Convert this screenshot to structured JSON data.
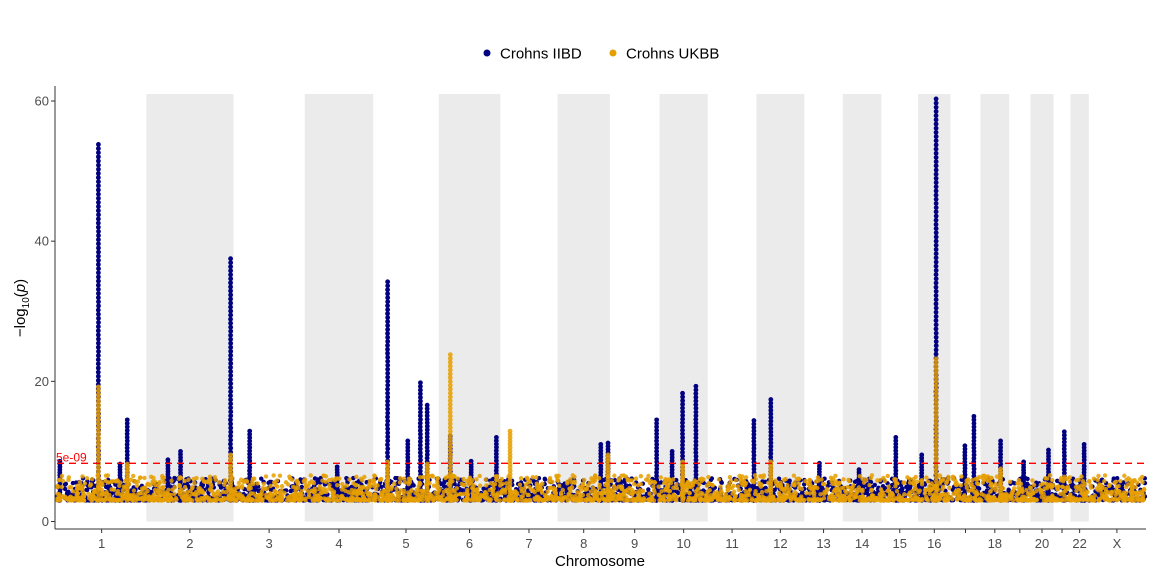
{
  "chart_data": {
    "type": "scatter",
    "subtype": "manhattan",
    "xlabel": "Chromosome",
    "ylabel_base": "−log",
    "ylabel_sub": "10",
    "ylabel_arg": "p",
    "yticks": [
      0,
      20,
      40,
      60
    ],
    "ylim": [
      0,
      61
    ],
    "grid": false,
    "legend_position": "top",
    "chromosome_band_color": "#ebebeb",
    "threshold": {
      "value": 8.3,
      "label": "5e-09",
      "color": "#ff0000"
    },
    "chromosomes": [
      {
        "label": "1",
        "start": 0,
        "end": 248,
        "band": false
      },
      {
        "label": "2",
        "start": 248,
        "end": 490,
        "band": true
      },
      {
        "label": "3",
        "start": 490,
        "end": 688,
        "band": false
      },
      {
        "label": "4",
        "start": 688,
        "end": 878,
        "band": true
      },
      {
        "label": "5",
        "start": 878,
        "end": 1060,
        "band": false
      },
      {
        "label": "6",
        "start": 1060,
        "end": 1231,
        "band": true
      },
      {
        "label": "7",
        "start": 1231,
        "end": 1390,
        "band": false
      },
      {
        "label": "8",
        "start": 1390,
        "end": 1535,
        "band": true
      },
      {
        "label": "9",
        "start": 1535,
        "end": 1673,
        "band": false
      },
      {
        "label": "10",
        "start": 1673,
        "end": 1807,
        "band": true
      },
      {
        "label": "11",
        "start": 1807,
        "end": 1942,
        "band": false
      },
      {
        "label": "12",
        "start": 1942,
        "end": 2075,
        "band": true
      },
      {
        "label": "13",
        "start": 2075,
        "end": 2182,
        "band": false
      },
      {
        "label": "14",
        "start": 2182,
        "end": 2289,
        "band": true
      },
      {
        "label": "15",
        "start": 2289,
        "end": 2391,
        "band": false
      },
      {
        "label": "16",
        "start": 2391,
        "end": 2481,
        "band": true
      },
      {
        "label": "",
        "start": 2481,
        "end": 2564,
        "band": false
      },
      {
        "label": "18",
        "start": 2564,
        "end": 2644,
        "band": true
      },
      {
        "label": "",
        "start": 2644,
        "end": 2703,
        "band": false
      },
      {
        "label": "20",
        "start": 2703,
        "end": 2767,
        "band": true
      },
      {
        "label": "",
        "start": 2767,
        "end": 2814,
        "band": false
      },
      {
        "label": "22",
        "start": 2814,
        "end": 2865,
        "band": true
      },
      {
        "label": "X",
        "start": 2865,
        "end": 3021,
        "band": false
      }
    ],
    "series": [
      {
        "name": "Crohns IIBD",
        "color": "#000080",
        "peaks": [
          {
            "chr": "1",
            "pos": 8,
            "y": 8.6
          },
          {
            "chr": "1",
            "pos": 115,
            "y": 53.8
          },
          {
            "chr": "1",
            "pos": 195,
            "y": 14.5
          },
          {
            "chr": "1",
            "pos": 175,
            "y": 8.2
          },
          {
            "chr": "2",
            "pos": 60,
            "y": 8.8
          },
          {
            "chr": "2",
            "pos": 95,
            "y": 10.0
          },
          {
            "chr": "2",
            "pos": 234,
            "y": 37.5
          },
          {
            "chr": "3",
            "pos": 45,
            "y": 12.9
          },
          {
            "chr": "4",
            "pos": 90,
            "y": 7.8
          },
          {
            "chr": "5",
            "pos": 40,
            "y": 34.2
          },
          {
            "chr": "5",
            "pos": 96,
            "y": 11.5
          },
          {
            "chr": "5",
            "pos": 131,
            "y": 19.8
          },
          {
            "chr": "5",
            "pos": 150,
            "y": 16.6
          },
          {
            "chr": "6",
            "pos": 32,
            "y": 12.2
          },
          {
            "chr": "6",
            "pos": 90,
            "y": 8.6
          },
          {
            "chr": "6",
            "pos": 160,
            "y": 12.0
          },
          {
            "chr": "8",
            "pos": 120,
            "y": 11.0
          },
          {
            "chr": "8",
            "pos": 140,
            "y": 11.2
          },
          {
            "chr": "9",
            "pos": 130,
            "y": 14.5
          },
          {
            "chr": "10",
            "pos": 35,
            "y": 10.0
          },
          {
            "chr": "10",
            "pos": 64,
            "y": 18.3
          },
          {
            "chr": "10",
            "pos": 101,
            "y": 19.3
          },
          {
            "chr": "11",
            "pos": 128,
            "y": 14.4
          },
          {
            "chr": "12",
            "pos": 40,
            "y": 17.4
          },
          {
            "chr": "13",
            "pos": 42,
            "y": 8.3
          },
          {
            "chr": "14",
            "pos": 45,
            "y": 7.4
          },
          {
            "chr": "15",
            "pos": 40,
            "y": 12.0
          },
          {
            "chr": "16",
            "pos": 50,
            "y": 60.3
          },
          {
            "chr": "16",
            "pos": 10,
            "y": 9.5
          },
          {
            "chr": "",
            "pos": 40,
            "y": 10.8
          },
          {
            "chr": "",
            "pos": 65,
            "y": 15.0
          },
          {
            "chr": "18",
            "pos": 56,
            "y": 11.5
          },
          {
            "chr": "",
            "pos": 40,
            "y": 8.5
          },
          {
            "chr": "20",
            "pos": 50,
            "y": 10.2
          },
          {
            "chr": "",
            "pos": 30,
            "y": 12.8
          },
          {
            "chr": "22",
            "pos": 38,
            "y": 11.0
          }
        ]
      },
      {
        "name": "Crohns UKBB",
        "color": "#e69f00",
        "peaks": [
          {
            "chr": "1",
            "pos": 115,
            "y": 19.2
          },
          {
            "chr": "1",
            "pos": 195,
            "y": 8.2
          },
          {
            "chr": "2",
            "pos": 234,
            "y": 9.5
          },
          {
            "chr": "5",
            "pos": 40,
            "y": 8.5
          },
          {
            "chr": "5",
            "pos": 150,
            "y": 8.2
          },
          {
            "chr": "6",
            "pos": 32,
            "y": 23.8
          },
          {
            "chr": "7",
            "pos": 27,
            "y": 12.9
          },
          {
            "chr": "8",
            "pos": 140,
            "y": 9.5
          },
          {
            "chr": "10",
            "pos": 64,
            "y": 8.5
          },
          {
            "chr": "12",
            "pos": 40,
            "y": 8.5
          },
          {
            "chr": "16",
            "pos": 50,
            "y": 23.2
          },
          {
            "chr": "18",
            "pos": 56,
            "y": 7.5
          },
          {
            "chr": "X",
            "pos": 120,
            "y": 5.5
          }
        ]
      }
    ]
  }
}
